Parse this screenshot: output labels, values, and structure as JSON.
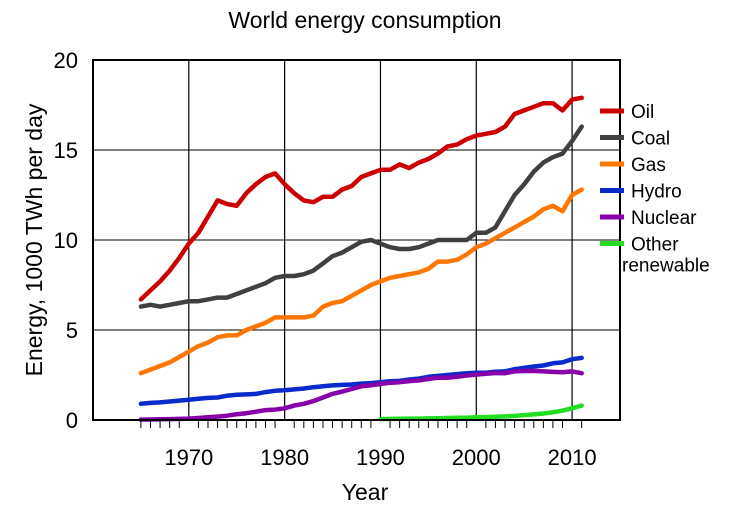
{
  "chart_data": {
    "type": "line",
    "title": "World energy consumption",
    "xlabel": "Year",
    "ylabel": "Energy, 1000 TWh per day",
    "xlim": [
      1965,
      2011
    ],
    "ylim": [
      0,
      20
    ],
    "x_ticks": [
      1970,
      1980,
      1990,
      2000,
      2010
    ],
    "y_ticks": [
      0,
      5,
      10,
      15,
      20
    ],
    "grid": true,
    "legend_position": "right",
    "series": [
      {
        "name": "Oil",
        "color": "#cc0000",
        "points": [
          [
            1965,
            6.7
          ],
          [
            1966,
            7.2
          ],
          [
            1967,
            7.7
          ],
          [
            1968,
            8.3
          ],
          [
            1969,
            9.0
          ],
          [
            1970,
            9.8
          ],
          [
            1971,
            10.4
          ],
          [
            1972,
            11.3
          ],
          [
            1973,
            12.2
          ],
          [
            1974,
            12.0
          ],
          [
            1975,
            11.9
          ],
          [
            1976,
            12.6
          ],
          [
            1977,
            13.1
          ],
          [
            1978,
            13.5
          ],
          [
            1979,
            13.7
          ],
          [
            1980,
            13.1
          ],
          [
            1981,
            12.6
          ],
          [
            1982,
            12.2
          ],
          [
            1983,
            12.1
          ],
          [
            1984,
            12.4
          ],
          [
            1985,
            12.4
          ],
          [
            1986,
            12.8
          ],
          [
            1987,
            13.0
          ],
          [
            1988,
            13.5
          ],
          [
            1989,
            13.7
          ],
          [
            1990,
            13.9
          ],
          [
            1991,
            13.9
          ],
          [
            1992,
            14.2
          ],
          [
            1993,
            14.0
          ],
          [
            1994,
            14.3
          ],
          [
            1995,
            14.5
          ],
          [
            1996,
            14.8
          ],
          [
            1997,
            15.2
          ],
          [
            1998,
            15.3
          ],
          [
            1999,
            15.6
          ],
          [
            2000,
            15.8
          ],
          [
            2001,
            15.9
          ],
          [
            2002,
            16.0
          ],
          [
            2003,
            16.3
          ],
          [
            2004,
            17.0
          ],
          [
            2005,
            17.2
          ],
          [
            2006,
            17.4
          ],
          [
            2007,
            17.6
          ],
          [
            2008,
            17.6
          ],
          [
            2009,
            17.2
          ],
          [
            2010,
            17.8
          ],
          [
            2011,
            17.9
          ]
        ]
      },
      {
        "name": "Coal",
        "color": "#404040",
        "points": [
          [
            1965,
            6.3
          ],
          [
            1966,
            6.4
          ],
          [
            1967,
            6.3
          ],
          [
            1968,
            6.4
          ],
          [
            1969,
            6.5
          ],
          [
            1970,
            6.6
          ],
          [
            1971,
            6.6
          ],
          [
            1972,
            6.7
          ],
          [
            1973,
            6.8
          ],
          [
            1974,
            6.8
          ],
          [
            1975,
            7.0
          ],
          [
            1976,
            7.2
          ],
          [
            1977,
            7.4
          ],
          [
            1978,
            7.6
          ],
          [
            1979,
            7.9
          ],
          [
            1980,
            8.0
          ],
          [
            1981,
            8.0
          ],
          [
            1982,
            8.1
          ],
          [
            1983,
            8.3
          ],
          [
            1984,
            8.7
          ],
          [
            1985,
            9.1
          ],
          [
            1986,
            9.3
          ],
          [
            1987,
            9.6
          ],
          [
            1988,
            9.9
          ],
          [
            1989,
            10.0
          ],
          [
            1990,
            9.8
          ],
          [
            1991,
            9.6
          ],
          [
            1992,
            9.5
          ],
          [
            1993,
            9.5
          ],
          [
            1994,
            9.6
          ],
          [
            1995,
            9.8
          ],
          [
            1996,
            10.0
          ],
          [
            1997,
            10.0
          ],
          [
            1998,
            10.0
          ],
          [
            1999,
            10.0
          ],
          [
            2000,
            10.4
          ],
          [
            2001,
            10.4
          ],
          [
            2002,
            10.7
          ],
          [
            2003,
            11.6
          ],
          [
            2004,
            12.5
          ],
          [
            2005,
            13.1
          ],
          [
            2006,
            13.8
          ],
          [
            2007,
            14.3
          ],
          [
            2008,
            14.6
          ],
          [
            2009,
            14.8
          ],
          [
            2010,
            15.5
          ],
          [
            2011,
            16.3
          ]
        ]
      },
      {
        "name": "Gas",
        "color": "#ff7700",
        "points": [
          [
            1965,
            2.6
          ],
          [
            1966,
            2.8
          ],
          [
            1967,
            3.0
          ],
          [
            1968,
            3.2
          ],
          [
            1969,
            3.5
          ],
          [
            1970,
            3.8
          ],
          [
            1971,
            4.1
          ],
          [
            1972,
            4.3
          ],
          [
            1973,
            4.6
          ],
          [
            1974,
            4.7
          ],
          [
            1975,
            4.7
          ],
          [
            1976,
            5.0
          ],
          [
            1977,
            5.2
          ],
          [
            1978,
            5.4
          ],
          [
            1979,
            5.7
          ],
          [
            1980,
            5.7
          ],
          [
            1981,
            5.7
          ],
          [
            1982,
            5.7
          ],
          [
            1983,
            5.8
          ],
          [
            1984,
            6.3
          ],
          [
            1985,
            6.5
          ],
          [
            1986,
            6.6
          ],
          [
            1987,
            6.9
          ],
          [
            1988,
            7.2
          ],
          [
            1989,
            7.5
          ],
          [
            1990,
            7.7
          ],
          [
            1991,
            7.9
          ],
          [
            1992,
            8.0
          ],
          [
            1993,
            8.1
          ],
          [
            1994,
            8.2
          ],
          [
            1995,
            8.4
          ],
          [
            1996,
            8.8
          ],
          [
            1997,
            8.8
          ],
          [
            1998,
            8.9
          ],
          [
            1999,
            9.2
          ],
          [
            2000,
            9.6
          ],
          [
            2001,
            9.8
          ],
          [
            2002,
            10.1
          ],
          [
            2003,
            10.4
          ],
          [
            2004,
            10.7
          ],
          [
            2005,
            11.0
          ],
          [
            2006,
            11.3
          ],
          [
            2007,
            11.7
          ],
          [
            2008,
            11.9
          ],
          [
            2009,
            11.6
          ],
          [
            2010,
            12.5
          ],
          [
            2011,
            12.8
          ]
        ]
      },
      {
        "name": "Hydro",
        "color": "#0a2bcc",
        "points": [
          [
            1965,
            0.9
          ],
          [
            1966,
            0.95
          ],
          [
            1967,
            0.98
          ],
          [
            1968,
            1.03
          ],
          [
            1969,
            1.08
          ],
          [
            1970,
            1.13
          ],
          [
            1971,
            1.18
          ],
          [
            1972,
            1.23
          ],
          [
            1973,
            1.25
          ],
          [
            1974,
            1.35
          ],
          [
            1975,
            1.4
          ],
          [
            1976,
            1.42
          ],
          [
            1977,
            1.45
          ],
          [
            1978,
            1.55
          ],
          [
            1979,
            1.62
          ],
          [
            1980,
            1.65
          ],
          [
            1981,
            1.7
          ],
          [
            1982,
            1.75
          ],
          [
            1983,
            1.82
          ],
          [
            1984,
            1.88
          ],
          [
            1985,
            1.92
          ],
          [
            1986,
            1.95
          ],
          [
            1987,
            1.97
          ],
          [
            1988,
            2.02
          ],
          [
            1989,
            2.05
          ],
          [
            1990,
            2.1
          ],
          [
            1991,
            2.15
          ],
          [
            1992,
            2.17
          ],
          [
            1993,
            2.25
          ],
          [
            1994,
            2.3
          ],
          [
            1995,
            2.4
          ],
          [
            1996,
            2.45
          ],
          [
            1997,
            2.5
          ],
          [
            1998,
            2.55
          ],
          [
            1999,
            2.6
          ],
          [
            2000,
            2.63
          ],
          [
            2001,
            2.63
          ],
          [
            2002,
            2.68
          ],
          [
            2003,
            2.7
          ],
          [
            2004,
            2.82
          ],
          [
            2005,
            2.9
          ],
          [
            2006,
            2.97
          ],
          [
            2007,
            3.03
          ],
          [
            2008,
            3.15
          ],
          [
            2009,
            3.2
          ],
          [
            2010,
            3.38
          ],
          [
            2011,
            3.45
          ]
        ]
      },
      {
        "name": "Nuclear",
        "color": "#8800aa",
        "points": [
          [
            1965,
            0.02
          ],
          [
            1966,
            0.03
          ],
          [
            1967,
            0.04
          ],
          [
            1968,
            0.05
          ],
          [
            1969,
            0.06
          ],
          [
            1970,
            0.08
          ],
          [
            1971,
            0.11
          ],
          [
            1972,
            0.15
          ],
          [
            1973,
            0.19
          ],
          [
            1974,
            0.24
          ],
          [
            1975,
            0.32
          ],
          [
            1976,
            0.38
          ],
          [
            1977,
            0.46
          ],
          [
            1978,
            0.55
          ],
          [
            1979,
            0.58
          ],
          [
            1980,
            0.65
          ],
          [
            1981,
            0.8
          ],
          [
            1982,
            0.9
          ],
          [
            1983,
            1.05
          ],
          [
            1984,
            1.25
          ],
          [
            1985,
            1.45
          ],
          [
            1986,
            1.58
          ],
          [
            1987,
            1.72
          ],
          [
            1988,
            1.87
          ],
          [
            1989,
            1.93
          ],
          [
            1990,
            2.0
          ],
          [
            1991,
            2.07
          ],
          [
            1992,
            2.1
          ],
          [
            1993,
            2.16
          ],
          [
            1994,
            2.2
          ],
          [
            1995,
            2.28
          ],
          [
            1996,
            2.35
          ],
          [
            1997,
            2.35
          ],
          [
            1998,
            2.4
          ],
          [
            1999,
            2.47
          ],
          [
            2000,
            2.52
          ],
          [
            2001,
            2.57
          ],
          [
            2002,
            2.61
          ],
          [
            2003,
            2.6
          ],
          [
            2004,
            2.7
          ],
          [
            2005,
            2.72
          ],
          [
            2006,
            2.73
          ],
          [
            2007,
            2.7
          ],
          [
            2008,
            2.67
          ],
          [
            2009,
            2.65
          ],
          [
            2010,
            2.7
          ],
          [
            2011,
            2.6
          ]
        ]
      },
      {
        "name": "Other renewable",
        "name_lines": [
          "Other",
          "renewable"
        ],
        "color": "#22dd22",
        "points": [
          [
            1990,
            0.05
          ],
          [
            1991,
            0.06
          ],
          [
            1992,
            0.07
          ],
          [
            1993,
            0.08
          ],
          [
            1994,
            0.08
          ],
          [
            1995,
            0.09
          ],
          [
            1996,
            0.1
          ],
          [
            1997,
            0.11
          ],
          [
            1998,
            0.12
          ],
          [
            1999,
            0.13
          ],
          [
            2000,
            0.15
          ],
          [
            2001,
            0.16
          ],
          [
            2002,
            0.18
          ],
          [
            2003,
            0.2
          ],
          [
            2004,
            0.23
          ],
          [
            2005,
            0.27
          ],
          [
            2006,
            0.31
          ],
          [
            2007,
            0.36
          ],
          [
            2008,
            0.43
          ],
          [
            2009,
            0.52
          ],
          [
            2010,
            0.65
          ],
          [
            2011,
            0.8
          ]
        ]
      }
    ]
  }
}
